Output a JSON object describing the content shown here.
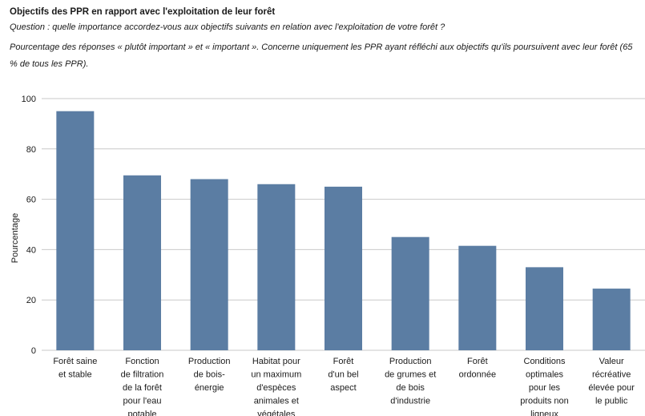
{
  "header": {
    "title": "Objectifs des PPR en rapport avec l'exploitation de leur forêt",
    "question": "Question : quelle importance accordez-vous aux objectifs suivants en relation avec l'exploitation de votre forêt ?",
    "note": "Pourcentage des réponses « plutôt important » et « important ». Concerne uniquement les PPR ayant réfléchi aux objectifs qu'ils poursuivent avec leur forêt (65 % de tous les PPR)."
  },
  "chart_data": {
    "type": "bar",
    "title": "",
    "xlabel": "",
    "ylabel": "Pourcentage",
    "ylim": [
      0,
      100
    ],
    "yticks": [
      0,
      20,
      40,
      60,
      80,
      100
    ],
    "grid": true,
    "color": "#5b7da3",
    "categories": [
      [
        "Forêt saine",
        "et stable"
      ],
      [
        "Fonction",
        "de filtration",
        "de la forêt",
        "pour l'eau",
        "potable"
      ],
      [
        "Production",
        "de bois-",
        "énergie"
      ],
      [
        "Habitat pour",
        "un maximum",
        "d'espèces",
        "animales et",
        "végétales"
      ],
      [
        "Forêt",
        "d'un bel",
        "aspect"
      ],
      [
        "Production",
        "de grumes et",
        "de bois",
        "d'industrie"
      ],
      [
        "Forêt",
        "ordonnée"
      ],
      [
        "Conditions",
        "optimales",
        "pour les",
        "produits non",
        "ligneux"
      ],
      [
        "Valeur",
        "récréative",
        "élevée pour",
        "le public"
      ]
    ],
    "values": [
      95,
      69.5,
      68,
      66,
      65,
      45,
      41.5,
      33,
      24.5
    ]
  }
}
